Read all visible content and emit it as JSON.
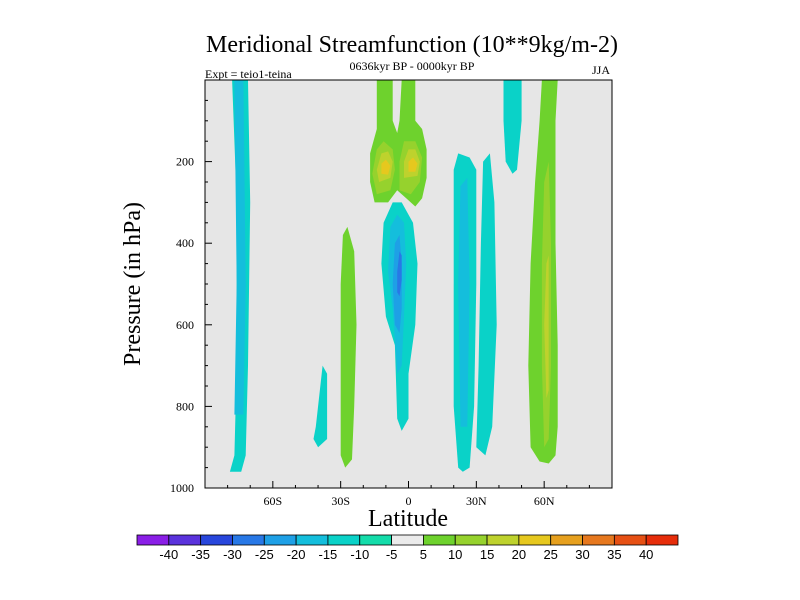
{
  "chart_data": {
    "type": "heatmap",
    "title": "Meridional Streamfunction (10**9kg/m-2)",
    "left_label": "Expt = teio1-teina",
    "center_label": "0636kyr BP - 0000kyr BP",
    "right_label": "JJA",
    "xlabel": "Latitude",
    "ylabel": "Pressure (in hPa)",
    "xlim": [
      -90,
      90
    ],
    "ylim": [
      1000,
      0
    ],
    "x_ticks": [
      {
        "value": -60,
        "label": "60S"
      },
      {
        "value": -30,
        "label": "30S"
      },
      {
        "value": 0,
        "label": "0"
      },
      {
        "value": 30,
        "label": "30N"
      },
      {
        "value": 60,
        "label": "60N"
      }
    ],
    "y_ticks": [
      {
        "value": 200,
        "label": "200"
      },
      {
        "value": 400,
        "label": "400"
      },
      {
        "value": 600,
        "label": "600"
      },
      {
        "value": 800,
        "label": "800"
      },
      {
        "value": 1000,
        "label": "1000"
      }
    ],
    "colorbar": {
      "labels": [
        "-40",
        "-35",
        "-30",
        "-25",
        "-20",
        "-15",
        "-10",
        "-5",
        "5",
        "10",
        "15",
        "20",
        "25",
        "30",
        "35",
        "40"
      ],
      "colors": [
        "#8a1ee6",
        "#5a32dc",
        "#2846dc",
        "#2878e6",
        "#1ea0e6",
        "#14bedc",
        "#0ad2c8",
        "#14dcaa",
        "#ebebeb",
        "#6ed22d",
        "#96d22d",
        "#bed22d",
        "#e6c81e",
        "#e6a01e",
        "#e6781e",
        "#e65014",
        "#e62d0a"
      ]
    },
    "background_color": "#e6e6e6",
    "features": [
      {
        "name": "neg-band-80S",
        "level": -10,
        "polygon": [
          [
            -79,
            960
          ],
          [
            -77,
            920
          ],
          [
            -76,
            700
          ],
          [
            -76,
            300
          ],
          [
            -78,
            0
          ],
          [
            -71,
            0
          ],
          [
            -70,
            300
          ],
          [
            -71,
            700
          ],
          [
            -72,
            920
          ],
          [
            -74,
            960
          ]
        ]
      },
      {
        "name": "neg-core-80S",
        "level": -15,
        "polygon": [
          [
            -77,
            820
          ],
          [
            -76,
            500
          ],
          [
            -77,
            0
          ],
          [
            -73,
            0
          ],
          [
            -72,
            500
          ],
          [
            -73,
            820
          ]
        ]
      },
      {
        "name": "neg-blob-35S",
        "level": -10,
        "polygon": [
          [
            -42,
            880
          ],
          [
            -41,
            850
          ],
          [
            -38,
            700
          ],
          [
            -36,
            720
          ],
          [
            -36,
            880
          ],
          [
            -40,
            900
          ]
        ]
      },
      {
        "name": "pos-band-25S",
        "level": 5,
        "polygon": [
          [
            -30,
            920
          ],
          [
            -30,
            700
          ],
          [
            -30,
            500
          ],
          [
            -29,
            380
          ],
          [
            -27,
            360
          ],
          [
            -24,
            420
          ],
          [
            -23,
            600
          ],
          [
            -24,
            800
          ],
          [
            -25,
            930
          ],
          [
            -28,
            950
          ]
        ]
      },
      {
        "name": "pos-tower-10S",
        "level": 5,
        "polygon": [
          [
            -15,
            300
          ],
          [
            -17,
            250
          ],
          [
            -17,
            180
          ],
          [
            -14,
            120
          ],
          [
            -14,
            0
          ],
          [
            -7,
            0
          ],
          [
            -7,
            100
          ],
          [
            -5,
            130
          ],
          [
            -4,
            100
          ],
          [
            -3,
            0
          ],
          [
            3,
            0
          ],
          [
            3,
            100
          ],
          [
            6,
            120
          ],
          [
            8,
            170
          ],
          [
            8,
            240
          ],
          [
            6,
            290
          ],
          [
            3,
            310
          ],
          [
            -1,
            290
          ],
          [
            -5,
            270
          ],
          [
            -9,
            300
          ]
        ]
      },
      {
        "name": "pos-maxA-15",
        "level": 10,
        "polygon": [
          [
            -14,
            280
          ],
          [
            -16,
            230
          ],
          [
            -14,
            170
          ],
          [
            -11,
            150
          ],
          [
            -7,
            170
          ],
          [
            -6,
            220
          ],
          [
            -8,
            270
          ]
        ]
      },
      {
        "name": "pos-maxB-15",
        "level": 10,
        "polygon": [
          [
            -4,
            270
          ],
          [
            -4,
            200
          ],
          [
            -2,
            150
          ],
          [
            3,
            150
          ],
          [
            6,
            190
          ],
          [
            5,
            250
          ],
          [
            1,
            280
          ]
        ]
      },
      {
        "name": "pos-coreA-20",
        "level": 15,
        "polygon": [
          [
            -13,
            250
          ],
          [
            -14,
            220
          ],
          [
            -12,
            180
          ],
          [
            -9,
            175
          ],
          [
            -7,
            200
          ],
          [
            -8,
            240
          ]
        ]
      },
      {
        "name": "pos-coreB-20",
        "level": 15,
        "polygon": [
          [
            -2,
            240
          ],
          [
            -2,
            200
          ],
          [
            0,
            170
          ],
          [
            3,
            170
          ],
          [
            5,
            200
          ],
          [
            4,
            235
          ]
        ]
      },
      {
        "name": "pos-peakA-25",
        "level": 20,
        "polygon": [
          [
            -12,
            230
          ],
          [
            -12,
            205
          ],
          [
            -10,
            195
          ],
          [
            -8,
            210
          ],
          [
            -9,
            232
          ]
        ]
      },
      {
        "name": "pos-peakB-25",
        "level": 20,
        "polygon": [
          [
            0,
            225
          ],
          [
            0,
            200
          ],
          [
            2,
            190
          ],
          [
            4,
            205
          ],
          [
            3,
            225
          ]
        ]
      },
      {
        "name": "neg-col-eq",
        "level": -10,
        "polygon": [
          [
            -5,
            830
          ],
          [
            -6,
            650
          ],
          [
            -10,
            580
          ],
          [
            -12,
            450
          ],
          [
            -11,
            350
          ],
          [
            -7,
            300
          ],
          [
            -3,
            300
          ],
          [
            2,
            350
          ],
          [
            4,
            450
          ],
          [
            3,
            600
          ],
          [
            0,
            720
          ],
          [
            0,
            830
          ],
          [
            -3,
            860
          ]
        ]
      },
      {
        "name": "neg-col-eq-15",
        "level": -15,
        "polygon": [
          [
            -5,
            720
          ],
          [
            -7,
            560
          ],
          [
            -9,
            470
          ],
          [
            -8,
            360
          ],
          [
            -5,
            330
          ],
          [
            -2,
            350
          ],
          [
            -1,
            450
          ],
          [
            -2,
            580
          ],
          [
            -3,
            700
          ]
        ]
      },
      {
        "name": "neg-col-eq-20",
        "level": -20,
        "polygon": [
          [
            -6,
            600
          ],
          [
            -7,
            500
          ],
          [
            -6,
            400
          ],
          [
            -4,
            380
          ],
          [
            -3,
            450
          ],
          [
            -3,
            560
          ],
          [
            -4,
            620
          ]
        ]
      },
      {
        "name": "neg-col-eq-25",
        "level": -25,
        "polygon": [
          [
            -5,
            520
          ],
          [
            -5,
            470
          ],
          [
            -4,
            420
          ],
          [
            -3,
            430
          ],
          [
            -3,
            490
          ],
          [
            -4,
            530
          ]
        ]
      },
      {
        "name": "neg-col-25N",
        "level": -10,
        "polygon": [
          [
            22,
            950
          ],
          [
            20,
            800
          ],
          [
            20,
            500
          ],
          [
            20,
            220
          ],
          [
            22,
            180
          ],
          [
            27,
            190
          ],
          [
            30,
            220
          ],
          [
            30,
            500
          ],
          [
            29,
            800
          ],
          [
            27,
            950
          ],
          [
            24,
            960
          ]
        ]
      },
      {
        "name": "neg-col-25N-15",
        "level": -15,
        "polygon": [
          [
            23,
            850
          ],
          [
            22,
            500
          ],
          [
            23,
            260
          ],
          [
            26,
            240
          ],
          [
            27,
            500
          ],
          [
            26,
            850
          ]
        ]
      },
      {
        "name": "neg-col-35N",
        "level": -10,
        "polygon": [
          [
            30,
            900
          ],
          [
            31,
            700
          ],
          [
            32,
            400
          ],
          [
            33,
            200
          ],
          [
            36,
            180
          ],
          [
            38,
            300
          ],
          [
            39,
            600
          ],
          [
            37,
            850
          ],
          [
            34,
            920
          ]
        ]
      },
      {
        "name": "neg-top-45N",
        "level": -10,
        "polygon": [
          [
            43,
            200
          ],
          [
            42,
            100
          ],
          [
            42,
            0
          ],
          [
            50,
            0
          ],
          [
            50,
            100
          ],
          [
            48,
            220
          ],
          [
            46,
            230
          ]
        ]
      },
      {
        "name": "pos-band-65N",
        "level": 5,
        "polygon": [
          [
            54,
            900
          ],
          [
            53,
            700
          ],
          [
            54,
            450
          ],
          [
            56,
            250
          ],
          [
            58,
            100
          ],
          [
            59,
            0
          ],
          [
            66,
            0
          ],
          [
            65,
            100
          ],
          [
            65,
            400
          ],
          [
            66,
            650
          ],
          [
            66,
            850
          ],
          [
            65,
            920
          ],
          [
            62,
            940
          ],
          [
            58,
            935
          ]
        ]
      },
      {
        "name": "pos-band-65N-10",
        "level": 10,
        "polygon": [
          [
            60,
            900
          ],
          [
            59,
            700
          ],
          [
            59,
            450
          ],
          [
            60,
            250
          ],
          [
            62,
            200
          ],
          [
            63,
            400
          ],
          [
            63,
            700
          ],
          [
            62,
            880
          ]
        ]
      },
      {
        "name": "pos-band-65N-15",
        "level": 15,
        "polygon": [
          [
            61,
            780
          ],
          [
            60,
            600
          ],
          [
            61,
            450
          ],
          [
            62,
            430
          ],
          [
            62,
            620
          ],
          [
            62,
            760
          ]
        ]
      }
    ]
  }
}
